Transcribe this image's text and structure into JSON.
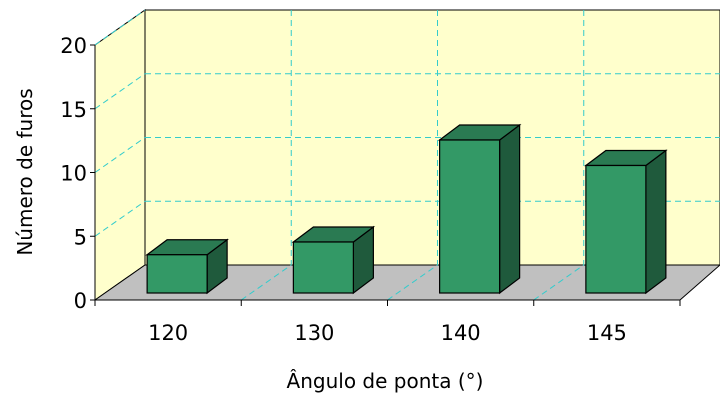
{
  "chart_data": {
    "type": "bar",
    "style": "3d",
    "categories": [
      "120",
      "130",
      "140",
      "145"
    ],
    "values": [
      3,
      4,
      12,
      10
    ],
    "xlabel": "Ângulo de ponta (°)",
    "ylabel": "Número de furos",
    "ylim": [
      0,
      20
    ],
    "yticks": [
      "0",
      "5",
      "10",
      "15",
      "20"
    ],
    "grid": true,
    "colors": {
      "bar_front": "#339966",
      "bar_top": "#2a7a52",
      "bar_side": "#1f5a3c",
      "back_wall": "#ffffcc",
      "floor": "#c0c0c0",
      "grid": "#33cccc"
    }
  }
}
